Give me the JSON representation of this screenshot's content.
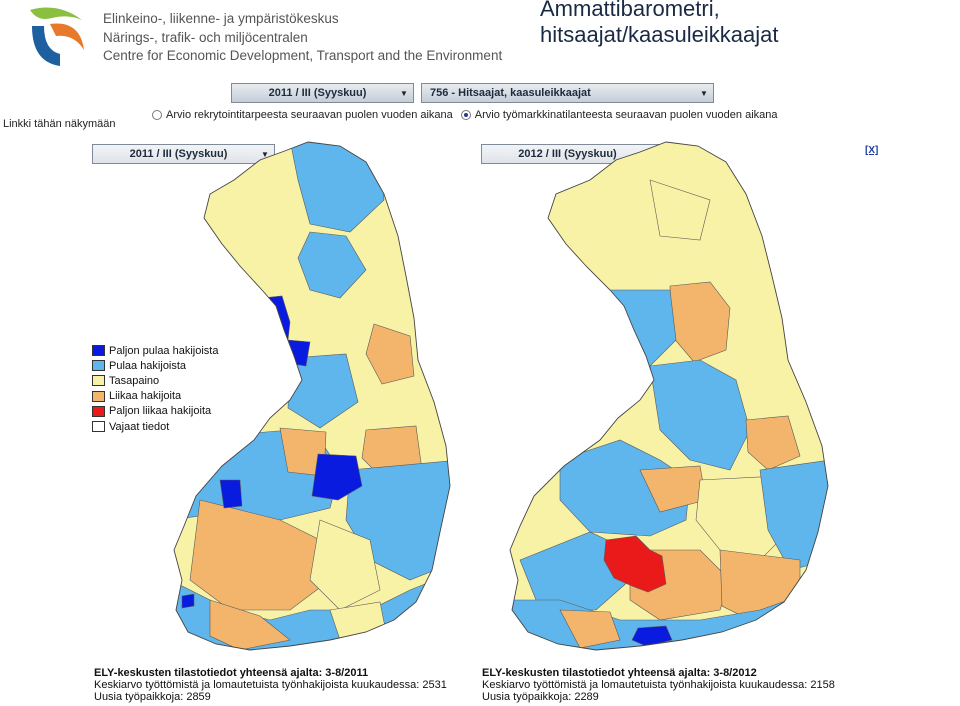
{
  "header": {
    "org_lines": [
      "Elinkeino-, liikenne- ja ympäristökeskus",
      "Närings-, trafik- och miljöcentralen",
      "Centre for Economic Development, Transport and the Environment"
    ],
    "title_lines": [
      "Ammattibarometri,",
      "hitsaajat/kaasuleikkaajat"
    ]
  },
  "controls": {
    "period_select": "2011 / III (Syyskuu)",
    "occupation_select": "756 - Hitsaajat, kaasuleikkaajat",
    "link_label": "Linkki tähän näkymään",
    "radios": [
      {
        "label": "Arvio rekrytointitarpeesta seuraavan puolen vuoden aikana",
        "selected": false
      },
      {
        "label": "Arvio työmarkkinatilanteesta seuraavan puolen vuoden aikana",
        "selected": true
      }
    ],
    "close_label": "[X]"
  },
  "legend": {
    "items": [
      {
        "label": "Paljon pulaa hakijoista",
        "color": "#0a1be0"
      },
      {
        "label": "Pulaa hakijoista",
        "color": "#5fb6ec"
      },
      {
        "label": "Tasapaino",
        "color": "#f8f2a6"
      },
      {
        "label": "Liikaa hakijoita",
        "color": "#f3b56b"
      },
      {
        "label": "Paljon liikaa hakijoita",
        "color": "#ea1a1a"
      },
      {
        "label": "Vajaat tiedot",
        "color": "#ffffff"
      }
    ]
  },
  "maps": [
    {
      "select": "2011 / III (Syyskuu)",
      "stats_heading": "ELY-keskusten tilastotiedot yhteensä ajalta: 3-8/2011",
      "stats_line1": "Keskiarvo työttömistä ja lomautetuista työnhakijoista kuukaudessa: 2531",
      "stats_line2": "Uusia työpaikkoja: 2859"
    },
    {
      "select": "2012 / III (Syyskuu)",
      "stats_heading": "ELY-keskusten tilastotiedot yhteensä ajalta: 3-8/2012",
      "stats_line1": "Keskiarvo työttömistä ja lomautetuista työnhakijoista kuukaudessa: 2158",
      "stats_line2": "Uusia työpaikkoja: 2289"
    }
  ],
  "colors": {
    "paljon_pulaa": "#0a1be0",
    "pulaa": "#5fb6ec",
    "tasapaino": "#f8f2a6",
    "liikaa": "#f3b56b",
    "paljon_liikaa": "#ea1a1a",
    "border": "#555555"
  }
}
